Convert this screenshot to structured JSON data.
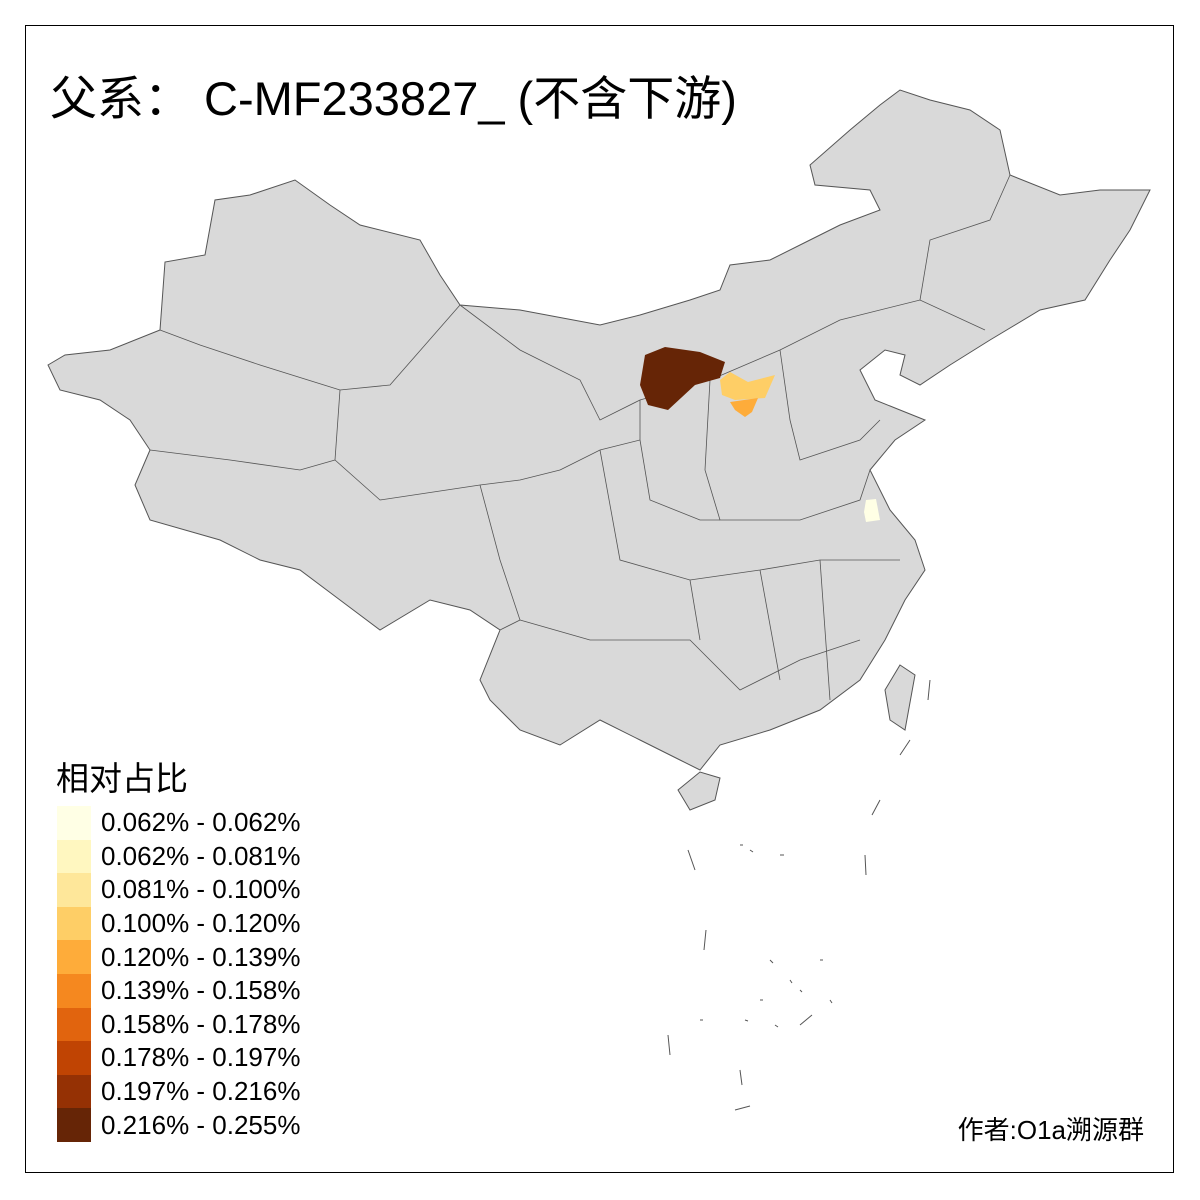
{
  "title": "父系： C-MF233827_ (不含下游)",
  "legend": {
    "title": "相对占比",
    "items": [
      {
        "label": "0.062% - 0.062%",
        "color": "#FFFFE5"
      },
      {
        "label": "0.062% - 0.081%",
        "color": "#FFF7C0"
      },
      {
        "label": "0.081% - 0.100%",
        "color": "#FEE79A"
      },
      {
        "label": "0.100% - 0.120%",
        "color": "#FECE66"
      },
      {
        "label": "0.120% - 0.139%",
        "color": "#FEAC3A"
      },
      {
        "label": "0.139% - 0.158%",
        "color": "#F5881F"
      },
      {
        "label": "0.158% - 0.178%",
        "color": "#E1640E"
      },
      {
        "label": "0.178% - 0.197%",
        "color": "#C04403"
      },
      {
        "label": "0.197% - 0.216%",
        "color": "#953104"
      },
      {
        "label": "0.216% - 0.255%",
        "color": "#662506"
      }
    ]
  },
  "map": {
    "base_color": "#D9D9D9",
    "border_color": "#555555",
    "highlighted_regions": [
      {
        "bin": 9,
        "color": "#662506"
      },
      {
        "bin": 3,
        "color": "#FECE66"
      },
      {
        "bin": 4,
        "color": "#FEAC3A"
      },
      {
        "bin": 0,
        "color": "#FFFFE5"
      }
    ]
  },
  "author": "作者:O1a溯源群"
}
